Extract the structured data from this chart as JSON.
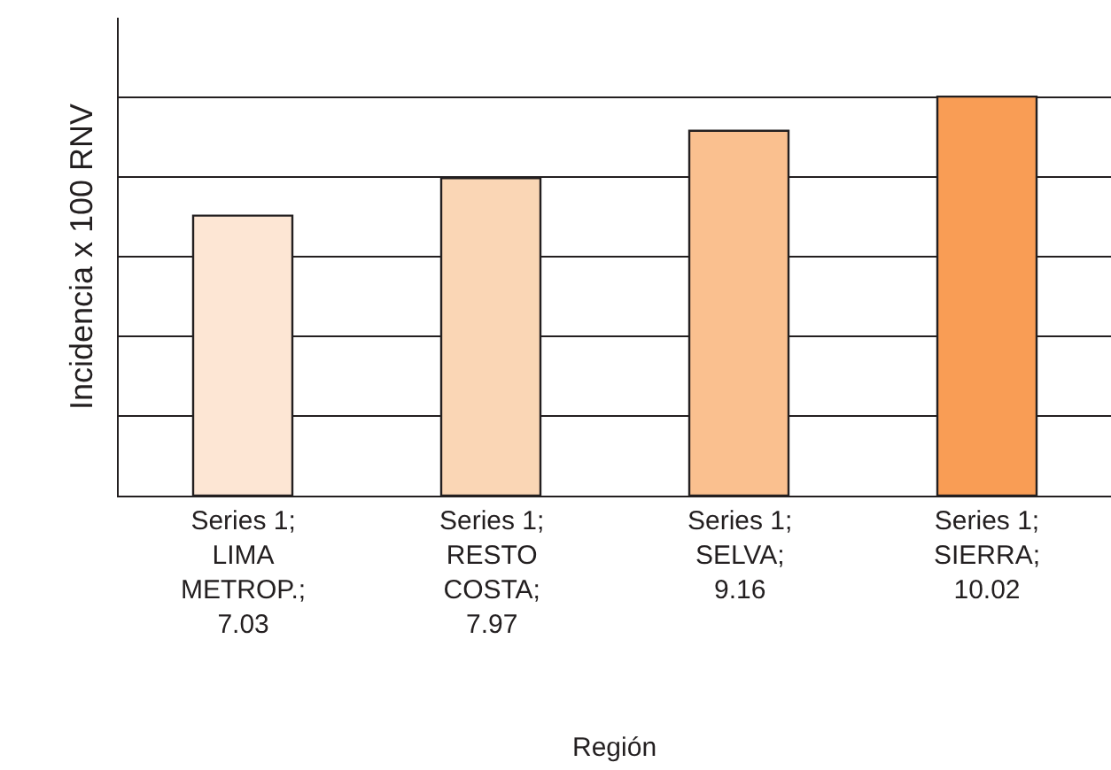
{
  "chart_data": {
    "type": "bar",
    "annotations": [
      "Región"
    ],
    "ylabel": "Incidencia x 100 RNV",
    "categories": [
      null,
      null,
      null,
      null
    ],
    "series": [
      {
        "values": [
          7.03,
          7.97,
          9.16,
          10.02
        ],
        "colors": [
          "#fde6d4",
          "#fad6b5",
          "#fac08f",
          "#f99d55"
        ],
        "value_labels": [
          "Series 1; LIMA METROP.; 7.03",
          "Series 1; RESTO COSTA; 7.97",
          "Series 1; SELVA; 9.16",
          "Series 1; SIERRA; 10.02"
        ]
      }
    ],
    "ylim": [
      0,
      12
    ],
    "yticks": [
      {
        "value": 0,
        "label": null
      },
      {
        "value": 2,
        "label": null
      },
      {
        "value": 4,
        "label": null
      },
      {
        "value": 6,
        "label": null
      },
      {
        "value": 8,
        "label": null
      },
      {
        "value": 10,
        "label": null
      }
    ],
    "grid": "y",
    "tick_labels": false
  }
}
